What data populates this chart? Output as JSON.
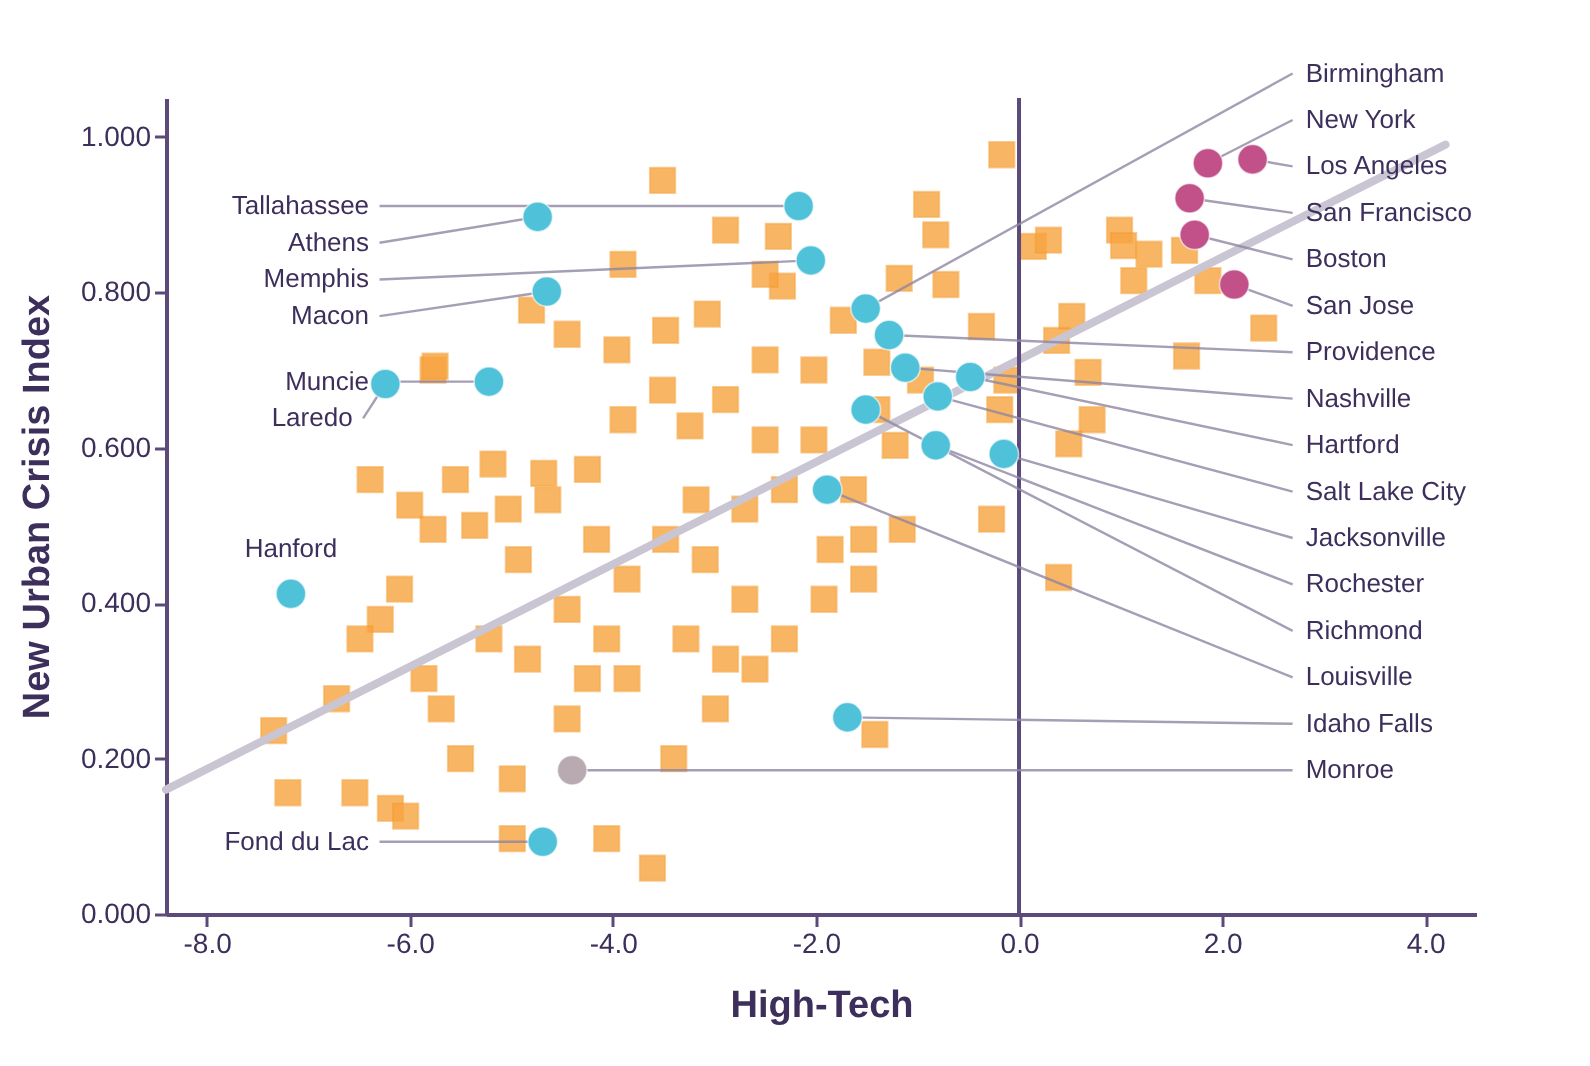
{
  "chart_data": {
    "type": "scatter",
    "xlabel": "High-Tech",
    "ylabel": "New Urban Crisis Index",
    "xlim": [
      -8.4,
      4.5
    ],
    "ylim": [
      0,
      1.05
    ],
    "xticks": [
      {
        "value": -8,
        "label": "-8.0"
      },
      {
        "value": -6,
        "label": "-6.0"
      },
      {
        "value": -4,
        "label": "-4.0"
      },
      {
        "value": -2,
        "label": "-2.0"
      },
      {
        "value": 0,
        "label": "0.0"
      },
      {
        "value": 2,
        "label": "2.0"
      },
      {
        "value": 4,
        "label": "4.0"
      }
    ],
    "yticks": [
      {
        "value": 0,
        "label": "0.000"
      },
      {
        "value": 0.2,
        "label": "0.200"
      },
      {
        "value": 0.4,
        "label": "0.400"
      },
      {
        "value": 0.6,
        "label": "0.600"
      },
      {
        "value": 0.8,
        "label": "0.800"
      },
      {
        "value": 1,
        "label": "1.000"
      }
    ],
    "grid": false,
    "legend": false,
    "ref_lines": [
      {
        "axis": "x",
        "value": 0,
        "color": "#5b4a7a"
      }
    ],
    "series": [
      {
        "type": "scatter",
        "marker": "square",
        "color": "#f7a541",
        "x": [
          -3.51,
          -0.17,
          -0.91,
          -2.89,
          -0.82,
          0.99,
          1.03,
          1.28,
          1.63,
          0.14,
          0.29,
          1.13,
          1.86,
          1.65,
          2.41,
          0.52,
          0.37,
          0.68,
          0.72,
          0.49,
          -0.12,
          -0.19,
          -0.97,
          -1.4,
          -0.37,
          -0.72,
          -1.18,
          -2.33,
          -2.37,
          -2.5,
          -3.9,
          -4.8,
          -4.45,
          -3.96,
          -3.48,
          -3.07,
          -5.77,
          -5.55,
          -6.0,
          -6.39,
          -5.77,
          -5.18,
          -4.68,
          -4.25,
          -3.9,
          -3.51,
          -3.24,
          -2.89,
          -2.5,
          -2.02,
          -1.73,
          -1.4,
          -1.22,
          -1.63,
          -1.15,
          -1.53,
          -1.86,
          -1.92,
          -1.53,
          -2.31,
          -2.6,
          -2.99,
          -3.4,
          -3.61,
          -4.06,
          -4.99,
          -6.19,
          -6.54,
          -7.34,
          -6.72,
          -6.29,
          -6.49,
          -5.86,
          -5.69,
          -5.5,
          -4.99,
          -4.45,
          -3.86,
          -3.28,
          -2.89,
          -2.7,
          -3.09,
          -3.48,
          -3.86,
          -4.45,
          -4.93,
          -5.22,
          -5.36,
          -6.1,
          -5.03,
          -4.64,
          -4.16,
          -4.06,
          -4.25,
          -4.84,
          -3.18,
          -2.7,
          -2.31,
          -2.02,
          -2.5,
          -7.2,
          -6.04,
          -5.75,
          -1.42,
          0.39,
          -0.27
        ],
        "values": [
          0.944,
          0.977,
          0.913,
          0.88,
          0.874,
          0.88,
          0.86,
          0.849,
          0.854,
          0.859,
          0.867,
          0.815,
          0.815,
          0.718,
          0.754,
          0.769,
          0.738,
          0.697,
          0.636,
          0.605,
          0.687,
          0.649,
          0.687,
          0.71,
          0.756,
          0.81,
          0.818,
          0.808,
          0.872,
          0.823,
          0.836,
          0.777,
          0.746,
          0.726,
          0.751,
          0.772,
          0.7,
          0.559,
          0.526,
          0.559,
          0.495,
          0.579,
          0.567,
          0.572,
          0.636,
          0.674,
          0.628,
          0.662,
          0.713,
          0.7,
          0.764,
          0.649,
          0.603,
          0.546,
          0.495,
          0.482,
          0.469,
          0.405,
          0.431,
          0.354,
          0.315,
          0.264,
          0.2,
          0.059,
          0.097,
          0.097,
          0.136,
          0.156,
          0.236,
          0.277,
          0.379,
          0.354,
          0.303,
          0.264,
          0.2,
          0.174,
          0.251,
          0.303,
          0.354,
          0.328,
          0.405,
          0.456,
          0.482,
          0.431,
          0.392,
          0.456,
          0.354,
          0.5,
          0.418,
          0.521,
          0.533,
          0.482,
          0.354,
          0.303,
          0.328,
          0.533,
          0.521,
          0.546,
          0.61,
          0.61,
          0.156,
          0.126,
          0.705,
          0.231,
          0.433,
          0.508
        ]
      },
      {
        "type": "line",
        "color": "#c9c5d3",
        "x": [
          -8.4,
          4.2
        ],
        "values": [
          0.16,
          0.99
        ]
      },
      {
        "type": "scatter",
        "marker": "circle",
        "color": "#4fc1d9",
        "x": [
          -2.17,
          -2.05,
          -4.74,
          -4.65,
          -5.22,
          -6.24,
          -7.17,
          -4.69,
          -1.51,
          -1.28,
          -1.12,
          -0.48,
          -0.8,
          -0.15,
          -0.82,
          -1.51,
          -1.89,
          -1.69
        ],
        "values": [
          0.911,
          0.841,
          0.897,
          0.801,
          0.685,
          0.682,
          0.412,
          0.093,
          0.779,
          0.745,
          0.703,
          0.691,
          0.666,
          0.592,
          0.603,
          0.649,
          0.546,
          0.253
        ]
      },
      {
        "type": "scatter",
        "marker": "circle",
        "color": "#c2518a",
        "x": [
          1.86,
          2.3,
          1.68,
          1.73,
          2.12
        ],
        "values": [
          0.966,
          0.971,
          0.921,
          0.874,
          0.81
        ]
      },
      {
        "type": "scatter",
        "marker": "circle",
        "color": "#b8aab0",
        "x": [
          -4.4
        ],
        "values": [
          0.185
        ]
      }
    ],
    "annotations": [
      {
        "text": "Tallahassee",
        "x": -2.17,
        "y": 0.911
      },
      {
        "text": "Memphis",
        "x": -2.05,
        "y": 0.841
      },
      {
        "text": "Athens",
        "x": -4.74,
        "y": 0.897
      },
      {
        "text": "Macon",
        "x": -4.65,
        "y": 0.801
      },
      {
        "text": "Muncie",
        "x": -5.22,
        "y": 0.685
      },
      {
        "text": "Laredo",
        "x": -6.24,
        "y": 0.682
      },
      {
        "text": "Hanford",
        "x": -7.17,
        "y": 0.412
      },
      {
        "text": "Fond du Lac",
        "x": -4.69,
        "y": 0.093
      },
      {
        "text": "Birmingham",
        "x": -1.51,
        "y": 0.779
      },
      {
        "text": "New York",
        "x": 1.86,
        "y": 0.966
      },
      {
        "text": "Los Angeles",
        "x": 2.3,
        "y": 0.971
      },
      {
        "text": "San Francisco",
        "x": 1.68,
        "y": 0.921
      },
      {
        "text": "Boston",
        "x": 1.73,
        "y": 0.874
      },
      {
        "text": "San Jose",
        "x": 2.12,
        "y": 0.81
      },
      {
        "text": "Providence",
        "x": -1.28,
        "y": 0.745
      },
      {
        "text": "Nashville",
        "x": -1.12,
        "y": 0.703
      },
      {
        "text": "Hartford",
        "x": -0.48,
        "y": 0.691
      },
      {
        "text": "Salt Lake City",
        "x": -0.8,
        "y": 0.666
      },
      {
        "text": "Jacksonville",
        "x": -0.15,
        "y": 0.592
      },
      {
        "text": "Rochester",
        "x": -0.82,
        "y": 0.603
      },
      {
        "text": "Richmond",
        "x": -1.51,
        "y": 0.649
      },
      {
        "text": "Louisville",
        "x": -1.89,
        "y": 0.546
      },
      {
        "text": "Idaho Falls",
        "x": -1.69,
        "y": 0.253
      },
      {
        "text": "Monroe",
        "x": -4.4,
        "y": 0.185
      }
    ]
  }
}
